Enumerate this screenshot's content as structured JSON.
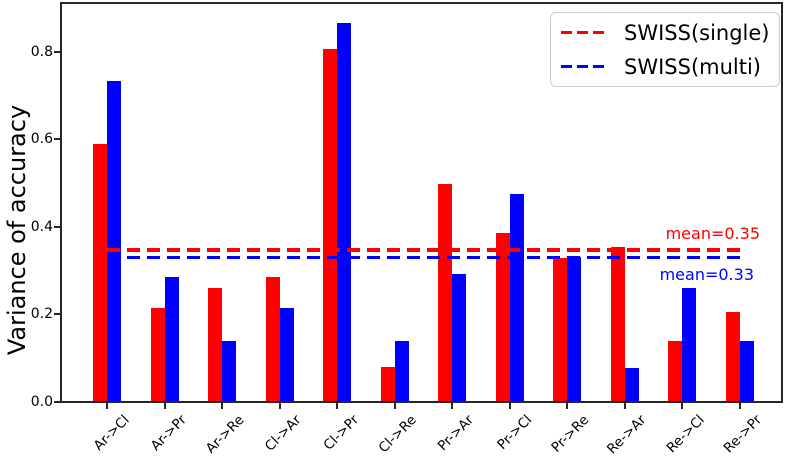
{
  "chart_data": {
    "type": "bar",
    "title": "",
    "xlabel": "",
    "ylabel": "Variance of accuracy",
    "categories": [
      "Ar->Cl",
      "Ar->Pr",
      "Ar->Re",
      "Cl->Ar",
      "Cl->Pr",
      "Cl->Re",
      "Pr->Ar",
      "Pr->Cl",
      "Pr->Re",
      "Re->Ar",
      "Re->Cl",
      "Re->Pr"
    ],
    "series": [
      {
        "name": "SWISS(single)",
        "color": "#ff0000",
        "values": [
          0.59,
          0.215,
          0.26,
          0.285,
          0.805,
          0.08,
          0.497,
          0.385,
          0.328,
          0.355,
          0.14,
          0.205
        ]
      },
      {
        "name": "SWISS(multi)",
        "color": "#0000ff",
        "values": [
          0.732,
          0.285,
          0.14,
          0.215,
          0.865,
          0.14,
          0.292,
          0.475,
          0.332,
          0.077,
          0.26,
          0.14
        ]
      }
    ],
    "yticks": [
      0.0,
      0.2,
      0.4,
      0.6,
      0.8
    ],
    "ylim": [
      0,
      0.91
    ],
    "grid": false,
    "legend": {
      "position": "upper right",
      "line_style": "dashed"
    },
    "mean_lines": [
      {
        "label": "mean=0.35",
        "value": 0.346,
        "color": "#ff0000"
      },
      {
        "label": "mean=0.33",
        "value": 0.329,
        "color": "#0000ff"
      }
    ]
  }
}
